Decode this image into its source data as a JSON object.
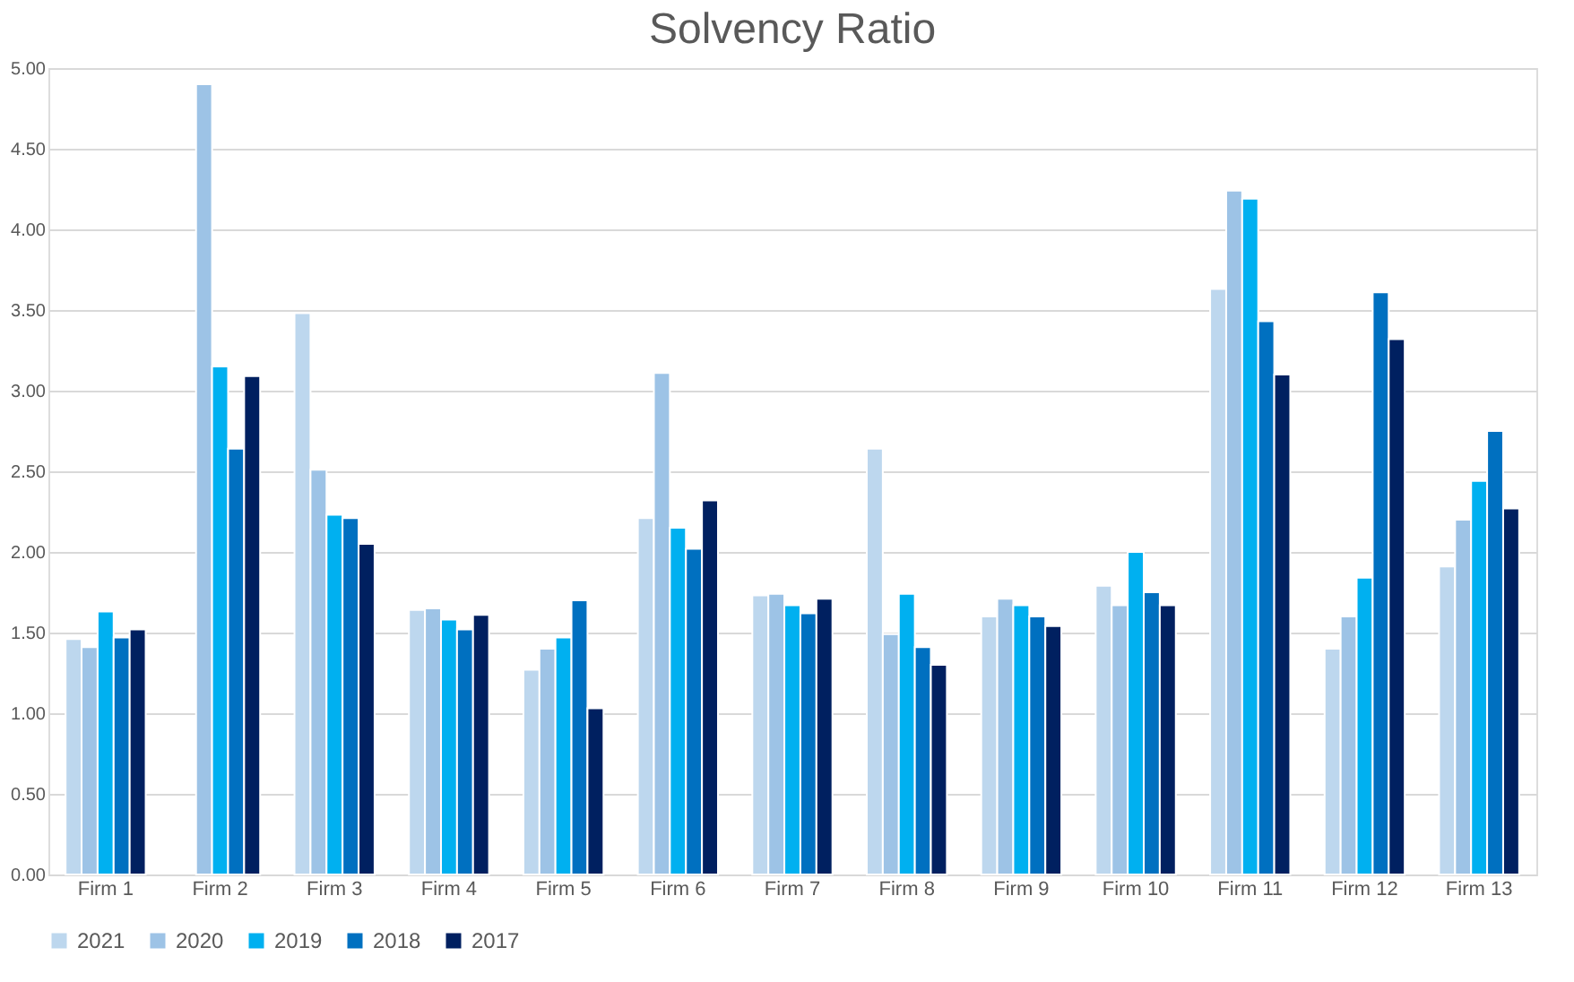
{
  "chart_data": {
    "type": "bar",
    "title": "Solvency Ratio",
    "categories": [
      "Firm 1",
      "Firm 2",
      "Firm 3",
      "Firm 4",
      "Firm 5",
      "Firm 6",
      "Firm 7",
      "Firm 8",
      "Firm 9",
      "Firm 10",
      "Firm 11",
      "Firm 12",
      "Firm 13"
    ],
    "series": [
      {
        "name": "2021",
        "color": "#bdd7ee",
        "values": [
          1.46,
          null,
          3.48,
          1.64,
          1.27,
          2.21,
          1.73,
          2.64,
          1.6,
          1.79,
          3.63,
          1.4,
          1.91
        ]
      },
      {
        "name": "2020",
        "color": "#9dc3e6",
        "values": [
          1.41,
          4.9,
          2.51,
          1.65,
          1.4,
          3.11,
          1.74,
          1.49,
          1.71,
          1.67,
          4.24,
          1.6,
          2.2
        ]
      },
      {
        "name": "2019",
        "color": "#00b0f0",
        "values": [
          1.63,
          3.15,
          2.23,
          1.58,
          1.47,
          2.15,
          1.67,
          1.74,
          1.67,
          2.0,
          4.19,
          1.84,
          2.44
        ]
      },
      {
        "name": "2018",
        "color": "#0070c0",
        "values": [
          1.47,
          2.64,
          2.21,
          1.52,
          1.7,
          2.02,
          1.62,
          1.41,
          1.6,
          1.75,
          3.43,
          3.61,
          2.75
        ]
      },
      {
        "name": "2017",
        "color": "#002060",
        "values": [
          1.52,
          3.09,
          2.05,
          1.61,
          1.03,
          2.32,
          1.71,
          1.3,
          1.54,
          1.67,
          3.1,
          3.32,
          2.27
        ]
      }
    ],
    "ylim": [
      0,
      5
    ],
    "yticks": [
      {
        "value": 0,
        "label": "0.00"
      },
      {
        "value": 0.5,
        "label": "0.50"
      },
      {
        "value": 1,
        "label": "1.00"
      },
      {
        "value": 1.5,
        "label": "1.50"
      },
      {
        "value": 2,
        "label": "2.00"
      },
      {
        "value": 2.5,
        "label": "2.50"
      },
      {
        "value": 3,
        "label": "3.00"
      },
      {
        "value": 3.5,
        "label": "3.50"
      },
      {
        "value": 4,
        "label": "4.00"
      },
      {
        "value": 4.5,
        "label": "4.50"
      },
      {
        "value": 5,
        "label": "5.00"
      }
    ],
    "grid": "y",
    "legend": "bottom"
  }
}
